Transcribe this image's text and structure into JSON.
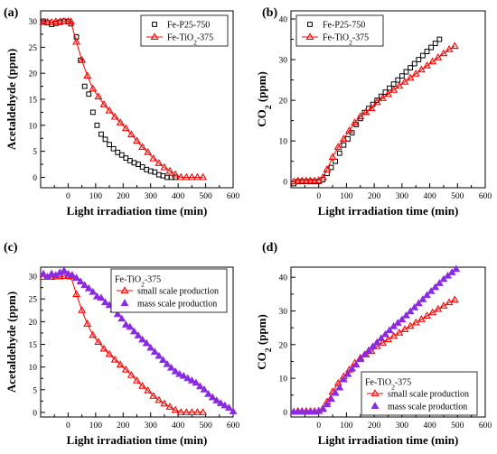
{
  "chart_data": [
    {
      "type": "scatter",
      "panel_label": "(a)",
      "xlabel": "Light irradiation time (min)",
      "ylabel": "Acetaldehyde (ppm)",
      "xlim": [
        -100,
        600
      ],
      "ylim": [
        -2,
        32
      ],
      "xticks": [
        0,
        100,
        200,
        300,
        400,
        500,
        600
      ],
      "xtick_labels": [
        "0",
        "100",
        "200",
        "300",
        "400",
        "500",
        "600"
      ],
      "yticks": [
        0,
        5,
        10,
        15,
        20,
        25,
        30
      ],
      "ytick_labels": [
        "0",
        "5",
        "10",
        "15",
        "20",
        "25",
        "30"
      ],
      "legend_position": "top-right",
      "series": [
        {
          "name": "Fe-P25-750",
          "marker": "square",
          "color": "#000000",
          "x": [
            -90,
            -75,
            -60,
            -45,
            -30,
            -15,
            0,
            10,
            30,
            45,
            60,
            75,
            90,
            105,
            120,
            135,
            150,
            165,
            180,
            195,
            210,
            225,
            240,
            255,
            270,
            285,
            300,
            315,
            330,
            345,
            360,
            375,
            390
          ],
          "y": [
            30,
            29.7,
            29.4,
            29.6,
            29.8,
            30,
            29.9,
            29.5,
            27,
            22.5,
            17.5,
            16,
            12.5,
            10,
            8.3,
            7.3,
            6.3,
            5.5,
            4.8,
            4.3,
            3.7,
            3.2,
            2.8,
            2.5,
            2,
            1.5,
            1.2,
            1,
            0.5,
            0.3,
            0,
            0,
            0
          ]
        },
        {
          "name": "Fe-TiO2-375",
          "marker": "triangle",
          "color": "#ff0000",
          "line": true,
          "x": [
            -90,
            -75,
            -60,
            -45,
            -30,
            -15,
            0,
            10,
            30,
            50,
            70,
            90,
            110,
            130,
            150,
            170,
            190,
            210,
            230,
            250,
            270,
            290,
            310,
            330,
            350,
            370,
            390,
            410,
            430,
            450,
            470,
            490
          ],
          "y": [
            29.8,
            29.8,
            29.8,
            29.9,
            29.9,
            30,
            30,
            29.9,
            26,
            22.5,
            19.5,
            17,
            15.5,
            14,
            12.8,
            11.6,
            10.5,
            9.4,
            8.2,
            7,
            5.8,
            4.8,
            3.6,
            2.7,
            1.9,
            1.2,
            0.5,
            0,
            0,
            0,
            0,
            0
          ]
        }
      ]
    },
    {
      "type": "scatter",
      "panel_label": "(b)",
      "xlabel": "Light irradiation time (min)",
      "ylabel": "CO2 (ppm)",
      "xlim": [
        -100,
        600
      ],
      "ylim": [
        -1.5,
        42
      ],
      "xticks": [
        0,
        100,
        200,
        300,
        400,
        500,
        600
      ],
      "xtick_labels": [
        "0",
        "100",
        "200",
        "300",
        "400",
        "500",
        "600"
      ],
      "yticks": [
        0,
        10,
        20,
        30,
        40
      ],
      "ytick_labels": [
        "0",
        "10",
        "20",
        "30",
        "40"
      ],
      "legend_position": "top-left",
      "series": [
        {
          "name": "Fe-P25-750",
          "marker": "square",
          "color": "#000000",
          "x": [
            -90,
            -75,
            -60,
            -45,
            -30,
            -15,
            0,
            15,
            30,
            45,
            60,
            75,
            90,
            105,
            120,
            135,
            150,
            165,
            180,
            195,
            210,
            225,
            240,
            255,
            270,
            285,
            300,
            315,
            330,
            345,
            360,
            375,
            390,
            405,
            420,
            435
          ],
          "y": [
            -0.5,
            0,
            0,
            0,
            0,
            0,
            0,
            0.5,
            2,
            3.5,
            5,
            7,
            9,
            10.5,
            12,
            14,
            15.5,
            17,
            18,
            19,
            20,
            21,
            22,
            23,
            24,
            25,
            26,
            27,
            28,
            29,
            30,
            31,
            32,
            33,
            34,
            35
          ]
        },
        {
          "name": "Fe-TiO2-375",
          "marker": "triangle",
          "color": "#ff0000",
          "line": true,
          "x": [
            -90,
            -75,
            -60,
            -45,
            -30,
            -15,
            0,
            15,
            30,
            50,
            70,
            90,
            110,
            130,
            150,
            170,
            190,
            210,
            230,
            250,
            270,
            290,
            310,
            330,
            350,
            370,
            390,
            410,
            430,
            450,
            470,
            490
          ],
          "y": [
            0,
            0.2,
            0.2,
            0.2,
            0.2,
            0.2,
            0.3,
            1,
            3,
            6,
            8.5,
            10.5,
            12.5,
            14.5,
            16,
            17,
            18,
            19.5,
            20.5,
            21.5,
            22.5,
            23.5,
            24.5,
            25.5,
            26.5,
            27.5,
            28.5,
            29.5,
            30.5,
            31.5,
            32.5,
            33.3
          ]
        }
      ]
    },
    {
      "type": "scatter",
      "panel_label": "(c)",
      "xlabel": "Light irradiation time (min)",
      "ylabel": "Acetaldehyde (ppm)",
      "xlim": [
        -100,
        600
      ],
      "ylim": [
        -1,
        32
      ],
      "xticks": [
        0,
        100,
        200,
        300,
        400,
        500,
        600
      ],
      "xtick_labels": [
        "0",
        "100",
        "200",
        "300",
        "400",
        "500",
        "600"
      ],
      "yticks": [
        0,
        5,
        10,
        15,
        20,
        25,
        30
      ],
      "ytick_labels": [
        "0",
        "5",
        "10",
        "15",
        "20",
        "25",
        "30"
      ],
      "legend_title": "Fe-TiO2-375",
      "legend_position": "top-center",
      "series": [
        {
          "name": "small scale production",
          "marker": "triangle",
          "color": "#ff0000",
          "line": true,
          "x": [
            -90,
            -75,
            -60,
            -45,
            -30,
            -15,
            0,
            10,
            30,
            50,
            70,
            90,
            110,
            130,
            150,
            170,
            190,
            210,
            230,
            250,
            270,
            290,
            310,
            330,
            350,
            370,
            390,
            410,
            430,
            450,
            470,
            490
          ],
          "y": [
            29.8,
            29.8,
            29.8,
            29.9,
            29.9,
            30,
            30,
            29.9,
            26,
            22.5,
            19.5,
            17,
            15.5,
            14,
            12.8,
            11.6,
            10.5,
            9.4,
            8.2,
            7,
            5.8,
            4.8,
            3.6,
            2.7,
            1.9,
            1.2,
            0.5,
            0,
            0,
            0,
            0,
            0
          ]
        },
        {
          "name": "mass scale production",
          "marker": "filled-triangle",
          "color": "#8a2be2",
          "x": [
            -90,
            -75,
            -60,
            -45,
            -30,
            -15,
            0,
            15,
            30,
            45,
            60,
            75,
            90,
            105,
            120,
            135,
            150,
            165,
            180,
            195,
            210,
            225,
            240,
            255,
            270,
            285,
            300,
            315,
            330,
            345,
            360,
            375,
            390,
            405,
            420,
            435,
            450,
            465,
            480,
            495,
            510,
            525,
            540,
            555,
            570,
            585,
            600
          ],
          "y": [
            30.5,
            29.8,
            30.5,
            30.2,
            30.8,
            31.2,
            30.5,
            30.2,
            29.6,
            28.8,
            28,
            27.3,
            26.5,
            25.5,
            25.2,
            24.2,
            23.6,
            22.6,
            21.6,
            20.6,
            19.3,
            18.8,
            17.8,
            16.9,
            16,
            15.2,
            14.2,
            13.3,
            12.4,
            11.5,
            10.6,
            9.8,
            9,
            8.4,
            8,
            7.5,
            7,
            6.5,
            5.7,
            5,
            4,
            3.3,
            2.6,
            2,
            1.5,
            1,
            0.2
          ]
        }
      ]
    },
    {
      "type": "scatter",
      "panel_label": "(d)",
      "xlabel": "Light irradiation time (min)",
      "ylabel": "CO2 (ppm)",
      "xlim": [
        -100,
        600
      ],
      "ylim": [
        -1.5,
        43
      ],
      "xticks": [
        0,
        100,
        200,
        300,
        400,
        500,
        600
      ],
      "xtick_labels": [
        "0",
        "100",
        "200",
        "300",
        "400",
        "500",
        "600"
      ],
      "yticks": [
        0,
        10,
        20,
        30,
        40
      ],
      "ytick_labels": [
        "0",
        "10",
        "20",
        "30",
        "40"
      ],
      "legend_title": "Fe-TiO2-375",
      "legend_position": "bottom-center",
      "series": [
        {
          "name": "small scale production",
          "marker": "triangle",
          "color": "#ff0000",
          "line": true,
          "x": [
            -90,
            -75,
            -60,
            -45,
            -30,
            -15,
            0,
            15,
            30,
            50,
            70,
            90,
            110,
            130,
            150,
            170,
            190,
            210,
            230,
            250,
            270,
            290,
            310,
            330,
            350,
            370,
            390,
            410,
            430,
            450,
            470,
            490
          ],
          "y": [
            0,
            0.2,
            0.2,
            0.2,
            0.2,
            0.2,
            0.3,
            1,
            3,
            6,
            8.5,
            10.5,
            12.5,
            14.5,
            16,
            17,
            18,
            19.5,
            20.5,
            21.5,
            22.5,
            23.5,
            24.5,
            25.5,
            26.5,
            27.5,
            28.5,
            29.5,
            30.5,
            31.5,
            32.5,
            33.3
          ]
        },
        {
          "name": "mass scale production",
          "marker": "filled-triangle",
          "color": "#8a2be2",
          "x": [
            -90,
            -75,
            -60,
            -45,
            -30,
            -15,
            0,
            15,
            30,
            45,
            60,
            75,
            90,
            105,
            120,
            135,
            150,
            165,
            180,
            195,
            210,
            225,
            240,
            255,
            270,
            285,
            300,
            315,
            330,
            345,
            360,
            375,
            390,
            405,
            420,
            435,
            450,
            465,
            480,
            495
          ],
          "y": [
            0,
            0,
            0,
            0,
            0,
            0,
            0.2,
            0.8,
            2.2,
            3.8,
            5.6,
            7.2,
            9.6,
            11.2,
            12.8,
            14,
            15.6,
            17,
            18.2,
            19.4,
            20.6,
            21.8,
            23,
            24.2,
            25.4,
            26.4,
            27.4,
            28.6,
            29.8,
            31,
            32.2,
            33.4,
            34.6,
            35.8,
            37,
            38.2,
            39.4,
            40.4,
            41.4,
            42.4
          ]
        }
      ]
    }
  ]
}
